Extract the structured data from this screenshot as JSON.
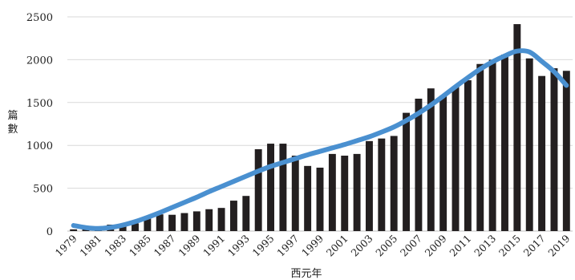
{
  "chart_data": {
    "type": "bar",
    "title": "",
    "xlabel": "西元年",
    "ylabel": "篇數",
    "ylim": [
      0,
      2500
    ],
    "yticks": [
      0,
      500,
      1000,
      1500,
      2000,
      2500
    ],
    "grid": "horizontal",
    "categories": [
      "1979",
      "1980",
      "1981",
      "1982",
      "1983",
      "1984",
      "1985",
      "1986",
      "1987",
      "1988",
      "1989",
      "1990",
      "1991",
      "1992",
      "1993",
      "1994",
      "1995",
      "1996",
      "1997",
      "1998",
      "1999",
      "2000",
      "2001",
      "2002",
      "2003",
      "2004",
      "2005",
      "2006",
      "2007",
      "2008",
      "2009",
      "2010",
      "2011",
      "2012",
      "2013",
      "2014",
      "2015",
      "2016",
      "2017",
      "2018",
      "2019"
    ],
    "x_tick_labels": [
      "1979",
      "1981",
      "1983",
      "1985",
      "1987",
      "1989",
      "1991",
      "1993",
      "1995",
      "1997",
      "1999",
      "2001",
      "2003",
      "2005",
      "2007",
      "2009",
      "2011",
      "2013",
      "2015",
      "2017",
      "2019"
    ],
    "series": [
      {
        "type": "bar",
        "color": "#231f20",
        "values": [
          20,
          20,
          40,
          75,
          70,
          90,
          160,
          195,
          190,
          210,
          230,
          255,
          270,
          355,
          410,
          955,
          1020,
          1020,
          880,
          760,
          740,
          900,
          880,
          900,
          1050,
          1080,
          1110,
          1380,
          1545,
          1665,
          1580,
          1690,
          1760,
          1950,
          2000,
          2060,
          2415,
          2015,
          1810,
          1900,
          1870
        ]
      },
      {
        "type": "line",
        "style": "smooth trend",
        "color": "#4a90d0",
        "values": [
          65,
          40,
          30,
          42,
          70,
          110,
          160,
          215,
          275,
          335,
          395,
          460,
          520,
          580,
          640,
          700,
          755,
          800,
          845,
          890,
          930,
          970,
          1010,
          1055,
          1100,
          1155,
          1215,
          1290,
          1375,
          1470,
          1575,
          1685,
          1790,
          1890,
          1975,
          2045,
          2100,
          2090,
          1980,
          1860,
          1700
        ]
      }
    ]
  }
}
